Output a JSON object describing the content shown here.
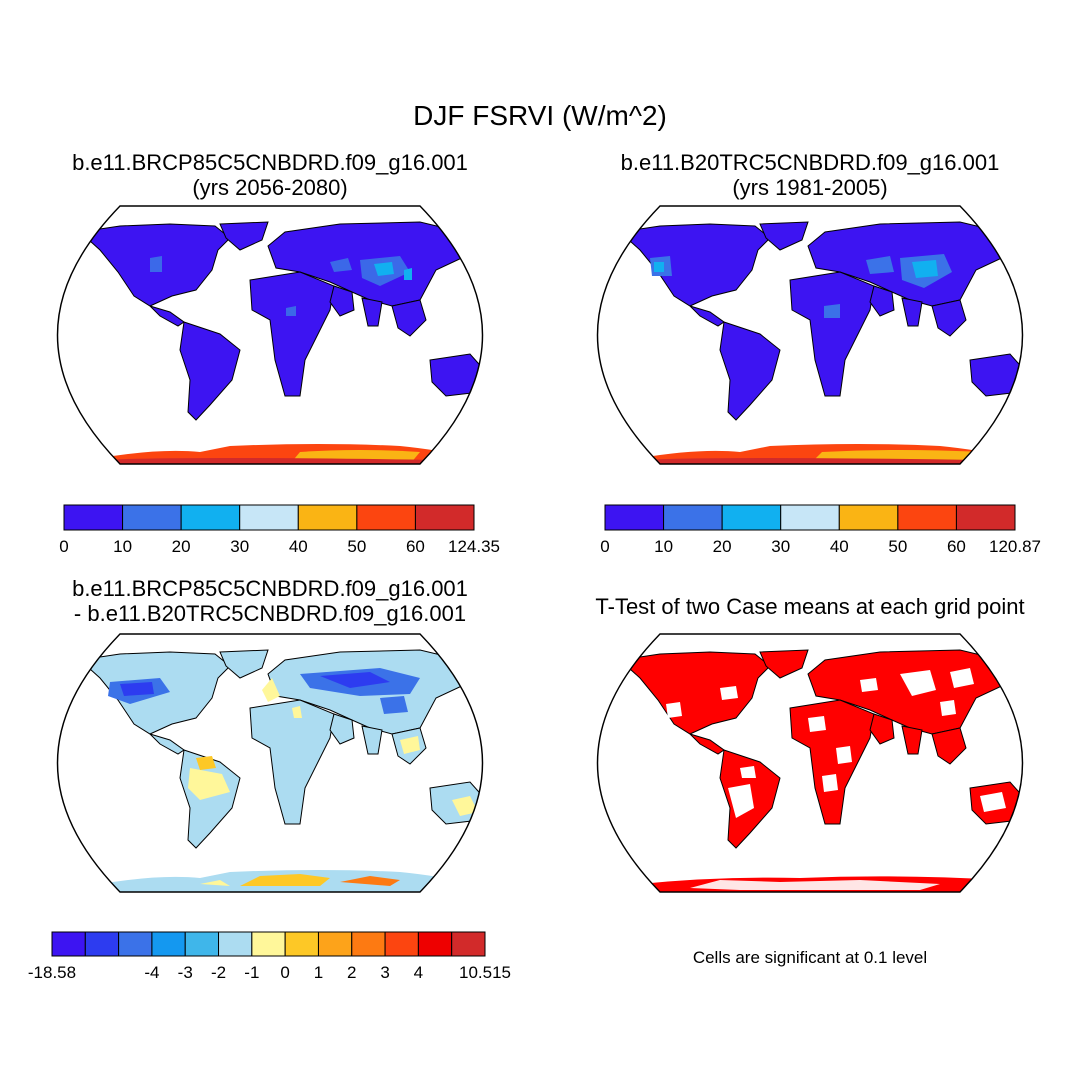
{
  "title": "DJF FSRVI (W/m^2)",
  "colors": {
    "water": "#ffffff",
    "outline": "#000000",
    "significant": "#ff0000",
    "seq_scale": [
      "#3d14f2",
      "#3b72e8",
      "#11b0f0",
      "#c7e6f7",
      "#fab414",
      "#fc4510",
      "#d22a2a"
    ],
    "diff_scale": [
      "#3d14f2",
      "#2d3cf0",
      "#3b72e8",
      "#1498f0",
      "#3fb6ea",
      "#acdcf1",
      "#fff79a",
      "#fdc826",
      "#fda31a",
      "#fd7a12",
      "#fc4510",
      "#ee0000",
      "#d22a2a"
    ]
  },
  "panels": {
    "top_left": {
      "title_line1": "b.e11.BRCP85C5CNBDRD.f09_g16.001",
      "title_line2": "(yrs 2056-2080)",
      "colorbar_labels": [
        "0",
        "10",
        "20",
        "30",
        "40",
        "50",
        "60",
        "124.35"
      ]
    },
    "top_right": {
      "title_line1": "b.e11.B20TRC5CNBDRD.f09_g16.001",
      "title_line2": "(yrs 1981-2005)",
      "colorbar_labels": [
        "0",
        "10",
        "20",
        "30",
        "40",
        "50",
        "60",
        "120.87"
      ]
    },
    "bottom_left": {
      "title_line1": "b.e11.BRCP85C5CNBDRD.f09_g16.001",
      "title_line2": "- b.e11.B20TRC5CNBDRD.f09_g16.001",
      "colorbar_labels": [
        "-18.58",
        "-4",
        "-3",
        "-2",
        "-1",
        "0",
        "1",
        "2",
        "3",
        "4",
        "10.515"
      ]
    },
    "bottom_right": {
      "title_line1": "T-Test of two Case means at each grid point",
      "note": "Cells are significant at 0.1 level"
    }
  }
}
